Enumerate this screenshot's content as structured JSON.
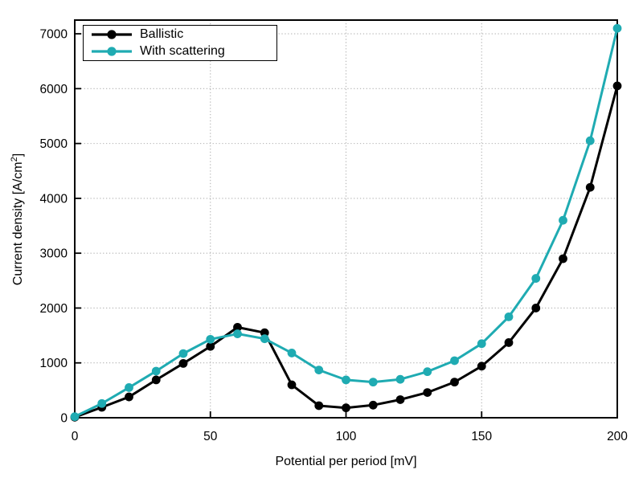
{
  "figure": {
    "background": "#ffffff",
    "axis_color": "#000000",
    "grid_color": "#b3b3b3",
    "tick_labels_x": [
      "0",
      "50",
      "100",
      "150",
      "200"
    ],
    "tick_labels_y": [
      "0",
      "1000",
      "2000",
      "3000",
      "4000",
      "5000",
      "6000",
      "7000"
    ]
  },
  "chart_data": {
    "type": "line",
    "title": "",
    "xlabel": "Potential per period [mV]",
    "ylabel": "Current density [A/cm²]",
    "ylabel_parts": {
      "prefix": "Current density [A/cm",
      "sup": "2",
      "suffix": "]"
    },
    "x": [
      0,
      10,
      20,
      30,
      40,
      50,
      60,
      70,
      80,
      90,
      100,
      110,
      120,
      130,
      140,
      150,
      160,
      170,
      180,
      190,
      200
    ],
    "series": [
      {
        "name": "Ballistic",
        "color": "#000000",
        "marker": "circle",
        "values": [
          10,
          190,
          380,
          690,
          990,
          1300,
          1650,
          1550,
          600,
          220,
          180,
          230,
          330,
          460,
          650,
          940,
          1370,
          2000,
          2900,
          4200,
          6050
        ]
      },
      {
        "name": "With scattering",
        "color": "#1FABB2",
        "marker": "circle",
        "values": [
          20,
          260,
          550,
          850,
          1170,
          1430,
          1530,
          1440,
          1180,
          870,
          690,
          650,
          700,
          840,
          1040,
          1350,
          1840,
          2540,
          3600,
          5050,
          7100
        ]
      }
    ],
    "xlim": [
      0,
      200
    ],
    "ylim": [
      0,
      7250
    ],
    "xticks": [
      0,
      50,
      100,
      150,
      200
    ],
    "yticks": [
      0,
      1000,
      2000,
      3000,
      4000,
      5000,
      6000,
      7000
    ],
    "grid": {
      "style": "dotted",
      "on": true
    },
    "legend_position": "top-left"
  }
}
